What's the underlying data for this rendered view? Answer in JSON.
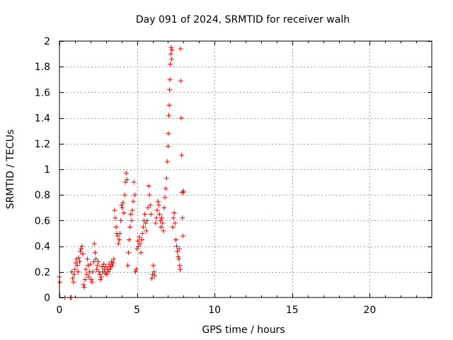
{
  "chart_data": {
    "type": "scatter",
    "title": "Day 091 of 2024, SRMTID for receiver walh",
    "xlabel": "GPS time / hours",
    "ylabel": "SRMTID / TECUs",
    "xlim": [
      0,
      24
    ],
    "ylim": [
      0,
      2
    ],
    "xticks": [
      0,
      5,
      10,
      15,
      20
    ],
    "xtick_labels": [
      "0",
      "5",
      "10",
      "15",
      "20"
    ],
    "yticks": [
      0,
      0.2,
      0.4,
      0.6,
      0.8,
      1,
      1.2,
      1.4,
      1.6,
      1.8,
      2
    ],
    "ytick_labels": [
      "0",
      "0.2",
      "0.4",
      "0.6",
      "0.8",
      "1",
      "1.2",
      "1.4",
      "1.6",
      "1.8",
      "2"
    ],
    "grid": true,
    "marker": "+",
    "marker_color": "#ff0000",
    "series": [
      {
        "name": "SRMTID",
        "points": [
          [
            0.0,
            0.16
          ],
          [
            0.02,
            0.12
          ],
          [
            0.35,
            0.0
          ],
          [
            0.7,
            0.0
          ],
          [
            0.75,
            0.0
          ],
          [
            0.8,
            0.2
          ],
          [
            0.85,
            0.15
          ],
          [
            0.9,
            0.12
          ],
          [
            0.95,
            0.18
          ],
          [
            1.0,
            0.22
          ],
          [
            1.05,
            0.27
          ],
          [
            1.1,
            0.3
          ],
          [
            1.15,
            0.25
          ],
          [
            1.2,
            0.2
          ],
          [
            1.25,
            0.31
          ],
          [
            1.3,
            0.28
          ],
          [
            1.35,
            0.36
          ],
          [
            1.4,
            0.38
          ],
          [
            1.45,
            0.4
          ],
          [
            1.5,
            0.34
          ],
          [
            1.55,
            0.1
          ],
          [
            1.6,
            0.08
          ],
          [
            1.65,
            0.14
          ],
          [
            1.7,
            0.22
          ],
          [
            1.75,
            0.18
          ],
          [
            1.8,
            0.3
          ],
          [
            1.85,
            0.25
          ],
          [
            1.9,
            0.16
          ],
          [
            1.95,
            0.2
          ],
          [
            2.0,
            0.26
          ],
          [
            2.05,
            0.14
          ],
          [
            2.1,
            0.12
          ],
          [
            2.15,
            0.2
          ],
          [
            2.2,
            0.28
          ],
          [
            2.25,
            0.42
          ],
          [
            2.3,
            0.35
          ],
          [
            2.35,
            0.3
          ],
          [
            2.4,
            0.22
          ],
          [
            2.45,
            0.25
          ],
          [
            2.5,
            0.28
          ],
          [
            2.55,
            0.2
          ],
          [
            2.6,
            0.18
          ],
          [
            2.65,
            0.14
          ],
          [
            2.7,
            0.16
          ],
          [
            2.75,
            0.24
          ],
          [
            2.8,
            0.2
          ],
          [
            2.85,
            0.26
          ],
          [
            2.9,
            0.22
          ],
          [
            2.95,
            0.19
          ],
          [
            3.0,
            0.24
          ],
          [
            3.05,
            0.18
          ],
          [
            3.1,
            0.22
          ],
          [
            3.15,
            0.2
          ],
          [
            3.2,
            0.26
          ],
          [
            3.25,
            0.22
          ],
          [
            3.3,
            0.24
          ],
          [
            3.35,
            0.28
          ],
          [
            3.4,
            0.25
          ],
          [
            3.45,
            0.27
          ],
          [
            3.5,
            0.3
          ],
          [
            3.55,
            0.68
          ],
          [
            3.6,
            0.62
          ],
          [
            3.65,
            0.55
          ],
          [
            3.7,
            0.5
          ],
          [
            3.75,
            0.48
          ],
          [
            3.8,
            0.42
          ],
          [
            3.85,
            0.45
          ],
          [
            3.9,
            0.5
          ],
          [
            3.95,
            0.6
          ],
          [
            4.0,
            0.72
          ],
          [
            4.05,
            0.7
          ],
          [
            4.1,
            0.74
          ],
          [
            4.15,
            0.66
          ],
          [
            4.2,
            0.8
          ],
          [
            4.25,
            0.9
          ],
          [
            4.3,
            0.97
          ],
          [
            4.35,
            0.92
          ],
          [
            4.4,
            0.25
          ],
          [
            4.45,
            0.35
          ],
          [
            4.5,
            0.45
          ],
          [
            4.55,
            0.55
          ],
          [
            4.6,
            0.65
          ],
          [
            4.65,
            0.6
          ],
          [
            4.7,
            0.68
          ],
          [
            4.75,
            0.75
          ],
          [
            4.8,
            0.9
          ],
          [
            4.85,
            0.8
          ],
          [
            4.9,
            0.2
          ],
          [
            4.95,
            0.22
          ],
          [
            5.0,
            0.38
          ],
          [
            5.05,
            0.44
          ],
          [
            5.1,
            0.4
          ],
          [
            5.15,
            0.47
          ],
          [
            5.2,
            0.42
          ],
          [
            5.25,
            0.35
          ],
          [
            5.3,
            0.45
          ],
          [
            5.35,
            0.5
          ],
          [
            5.4,
            0.55
          ],
          [
            5.45,
            0.6
          ],
          [
            5.5,
            0.65
          ],
          [
            5.55,
            0.58
          ],
          [
            5.6,
            0.52
          ],
          [
            5.65,
            0.6
          ],
          [
            5.7,
            0.7
          ],
          [
            5.75,
            0.87
          ],
          [
            5.8,
            0.8
          ],
          [
            5.85,
            0.72
          ],
          [
            5.9,
            0.65
          ],
          [
            5.95,
            0.15
          ],
          [
            6.0,
            0.18
          ],
          [
            6.05,
            0.25
          ],
          [
            6.1,
            0.2
          ],
          [
            6.15,
            0.17
          ],
          [
            6.2,
            0.58
          ],
          [
            6.25,
            0.62
          ],
          [
            6.3,
            0.68
          ],
          [
            6.35,
            0.75
          ],
          [
            6.4,
            0.72
          ],
          [
            6.45,
            0.65
          ],
          [
            6.5,
            0.6
          ],
          [
            6.55,
            0.55
          ],
          [
            6.6,
            0.62
          ],
          [
            6.65,
            0.58
          ],
          [
            6.7,
            0.52
          ],
          [
            6.75,
            0.7
          ],
          [
            6.8,
            0.78
          ],
          [
            6.85,
            0.85
          ],
          [
            6.9,
            0.93
          ],
          [
            6.95,
            1.06
          ],
          [
            7.0,
            1.18
          ],
          [
            7.02,
            1.28
          ],
          [
            7.05,
            1.42
          ],
          [
            7.08,
            1.5
          ],
          [
            7.1,
            1.62
          ],
          [
            7.12,
            1.7
          ],
          [
            7.15,
            1.82
          ],
          [
            7.18,
            1.9
          ],
          [
            7.2,
            1.95
          ],
          [
            7.22,
            1.86
          ],
          [
            7.25,
            1.93
          ],
          [
            7.3,
            0.55
          ],
          [
            7.35,
            0.62
          ],
          [
            7.4,
            0.66
          ],
          [
            7.45,
            0.58
          ],
          [
            7.5,
            0.45
          ],
          [
            7.55,
            0.4
          ],
          [
            7.6,
            0.36
          ],
          [
            7.65,
            0.32
          ],
          [
            7.7,
            0.3
          ],
          [
            7.72,
            0.38
          ],
          [
            7.75,
            0.25
          ],
          [
            7.78,
            0.22
          ],
          [
            7.8,
            1.94
          ],
          [
            7.82,
            1.69
          ],
          [
            7.85,
            1.4
          ],
          [
            7.88,
            1.11
          ],
          [
            7.9,
            0.82
          ],
          [
            7.93,
            0.62
          ],
          [
            7.95,
            0.48
          ],
          [
            7.98,
            0.82
          ],
          [
            8.0,
            0.83
          ]
        ]
      }
    ]
  }
}
